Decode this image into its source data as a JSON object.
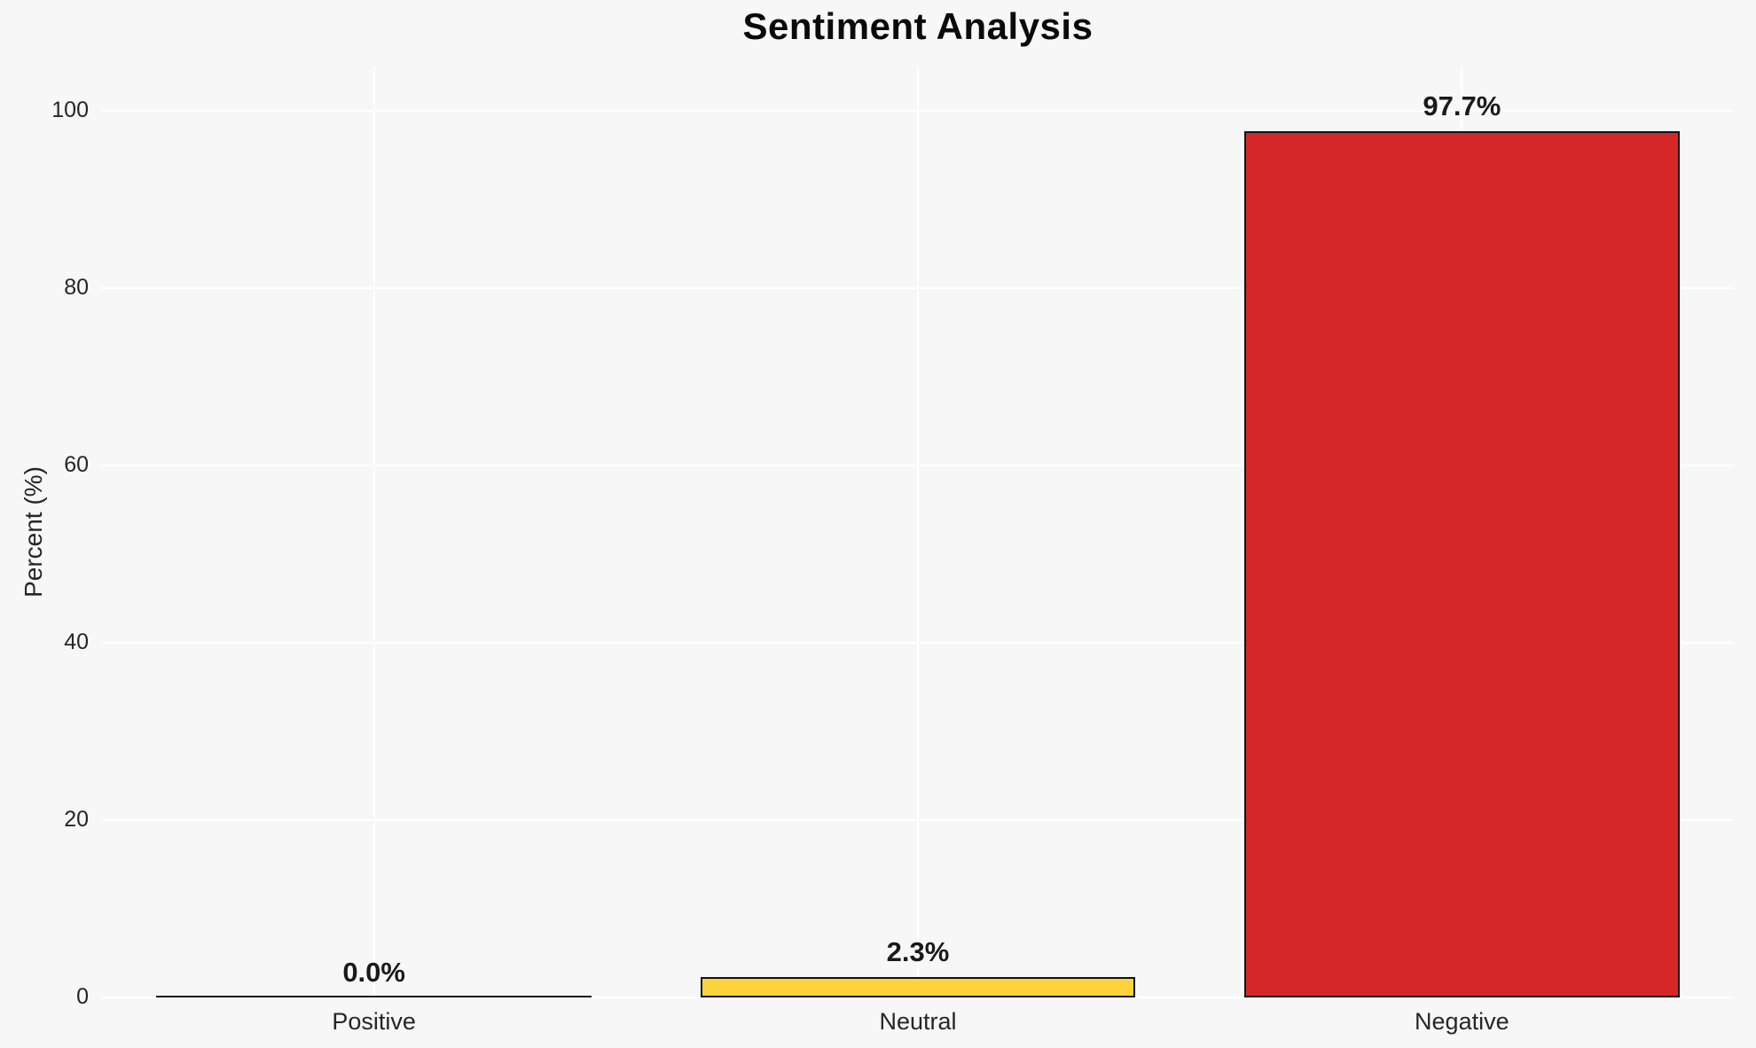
{
  "title": "Sentiment Analysis",
  "colors": {
    "figure_background": "#f7f7f7",
    "gridline": "#ffffff",
    "bar_edge": "#111111",
    "text": "#262626",
    "title_text": "#0a0a0a"
  },
  "chart_data": {
    "type": "bar",
    "title": "Sentiment Analysis",
    "xlabel": "",
    "ylabel": "Percent (%)",
    "categories": [
      "Positive",
      "Neutral",
      "Negative"
    ],
    "values": [
      0.0,
      2.3,
      97.7
    ],
    "value_labels": [
      "0.0%",
      "2.3%",
      "97.7%"
    ],
    "bar_colors": [
      null,
      "#ffd43b",
      "#d62728"
    ],
    "yticks": [
      0,
      20,
      40,
      60,
      80,
      100
    ],
    "ylim": [
      0,
      105
    ],
    "grid": true,
    "legend": false
  }
}
